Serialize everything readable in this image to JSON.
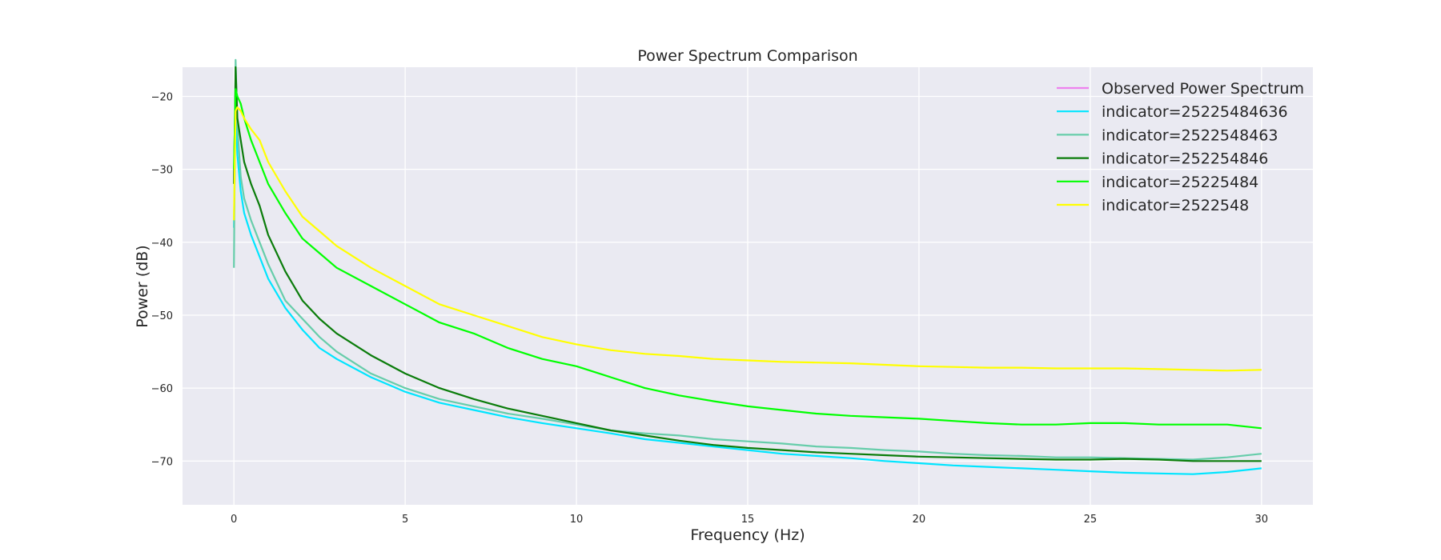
{
  "chart_data": {
    "type": "line",
    "title": "Power Spectrum Comparison",
    "xlabel": "Frequency (Hz)",
    "ylabel": "Power (dB)",
    "xlim": [
      -1.5,
      31.5
    ],
    "ylim": [
      -76,
      -16
    ],
    "xticks": [
      0,
      5,
      10,
      15,
      20,
      25,
      30
    ],
    "yticks": [
      -20,
      -30,
      -40,
      -50,
      -60,
      -70
    ],
    "grid": true,
    "legend_position": "top-right",
    "series": [
      {
        "name": "Observed Power Spectrum",
        "color": "#ee82ee",
        "x": [],
        "values": []
      },
      {
        "name": "indicator=25225484636",
        "color": "#00e5ff",
        "x": [
          0,
          0.05,
          0.1,
          0.2,
          0.3,
          0.5,
          0.75,
          1,
          1.5,
          2,
          2.5,
          3,
          4,
          5,
          6,
          7,
          8,
          9,
          10,
          11,
          12,
          13,
          14,
          15,
          16,
          17,
          18,
          19,
          20,
          21,
          22,
          23,
          24,
          25,
          26,
          27,
          28,
          29,
          30
        ],
        "values": [
          -38,
          -22,
          -28,
          -33,
          -36,
          -39,
          -42,
          -45,
          -49,
          -52,
          -54.5,
          -56,
          -58.5,
          -60.5,
          -62,
          -63,
          -64,
          -64.8,
          -65.5,
          -66.2,
          -67,
          -67.5,
          -68,
          -68.5,
          -69,
          -69.3,
          -69.6,
          -70,
          -70.3,
          -70.6,
          -70.8,
          -71,
          -71.2,
          -71.4,
          -71.6,
          -71.7,
          -71.8,
          -71.5,
          -71
        ]
      },
      {
        "name": "indicator=2522548463",
        "color": "#66cdaa",
        "x": [
          0,
          0.05,
          0.1,
          0.2,
          0.3,
          0.5,
          0.75,
          1,
          1.5,
          2,
          2.5,
          3,
          4,
          5,
          6,
          7,
          8,
          9,
          10,
          11,
          12,
          13,
          14,
          15,
          16,
          17,
          18,
          19,
          20,
          21,
          22,
          23,
          24,
          25,
          26,
          27,
          28,
          29,
          30
        ],
        "values": [
          -43.5,
          -15,
          -24,
          -31,
          -34,
          -37,
          -40,
          -43,
          -48,
          -50.5,
          -53,
          -55,
          -58,
          -60,
          -61.5,
          -62.5,
          -63.5,
          -64.2,
          -65,
          -65.8,
          -66.2,
          -66.5,
          -67,
          -67.3,
          -67.6,
          -68,
          -68.2,
          -68.5,
          -68.7,
          -69,
          -69.2,
          -69.3,
          -69.5,
          -69.5,
          -69.6,
          -69.7,
          -69.8,
          -69.5,
          -69
        ]
      },
      {
        "name": "indicator=252254846",
        "color": "#0a7c0a",
        "x": [
          0,
          0.05,
          0.1,
          0.2,
          0.3,
          0.5,
          0.75,
          1,
          1.5,
          2,
          2.5,
          3,
          4,
          5,
          6,
          7,
          8,
          9,
          10,
          11,
          12,
          13,
          14,
          15,
          16,
          17,
          18,
          19,
          20,
          21,
          22,
          23,
          24,
          25,
          26,
          27,
          28,
          29,
          30
        ],
        "values": [
          -32,
          -16,
          -23,
          -26,
          -29,
          -32,
          -35,
          -39,
          -44,
          -48,
          -50.5,
          -52.5,
          -55.5,
          -58,
          -60,
          -61.5,
          -62.8,
          -63.8,
          -64.8,
          -65.8,
          -66.5,
          -67.2,
          -67.8,
          -68.2,
          -68.5,
          -68.8,
          -69,
          -69.2,
          -69.4,
          -69.5,
          -69.6,
          -69.7,
          -69.8,
          -69.8,
          -69.7,
          -69.8,
          -70,
          -70,
          -70
        ]
      },
      {
        "name": "indicator=25225484",
        "color": "#00ff00",
        "x": [
          0,
          0.05,
          0.1,
          0.2,
          0.3,
          0.5,
          0.75,
          1,
          1.5,
          2,
          2.5,
          3,
          4,
          5,
          6,
          7,
          8,
          9,
          10,
          11,
          12,
          13,
          14,
          15,
          16,
          17,
          18,
          19,
          20,
          21,
          22,
          23,
          24,
          25,
          26,
          27,
          28,
          29,
          30
        ],
        "values": [
          -30,
          -19,
          -20,
          -21,
          -23,
          -26,
          -29,
          -32,
          -36,
          -39.5,
          -41.5,
          -43.5,
          -46,
          -48.5,
          -51,
          -52.5,
          -54.5,
          -56,
          -57,
          -58.5,
          -60,
          -61,
          -61.8,
          -62.5,
          -63,
          -63.5,
          -63.8,
          -64,
          -64.2,
          -64.5,
          -64.8,
          -65,
          -65,
          -64.8,
          -64.8,
          -65,
          -65,
          -65,
          -65.5
        ]
      },
      {
        "name": "indicator=2522548",
        "color": "#ffff00",
        "x": [
          0,
          0.05,
          0.1,
          0.2,
          0.3,
          0.5,
          0.75,
          1,
          1.5,
          2,
          2.5,
          3,
          4,
          5,
          6,
          7,
          8,
          9,
          10,
          11,
          12,
          13,
          14,
          15,
          16,
          17,
          18,
          19,
          20,
          21,
          22,
          23,
          24,
          25,
          26,
          27,
          28,
          29,
          30
        ],
        "values": [
          -37,
          -22,
          -21.5,
          -22,
          -23,
          -24.5,
          -26,
          -29,
          -33,
          -36.5,
          -38.5,
          -40.5,
          -43.5,
          -46,
          -48.5,
          -50,
          -51.5,
          -53,
          -54,
          -54.8,
          -55.3,
          -55.6,
          -56,
          -56.2,
          -56.4,
          -56.5,
          -56.6,
          -56.8,
          -57,
          -57.1,
          -57.2,
          -57.2,
          -57.3,
          -57.3,
          -57.3,
          -57.4,
          -57.5,
          -57.6,
          -57.5
        ]
      }
    ]
  }
}
